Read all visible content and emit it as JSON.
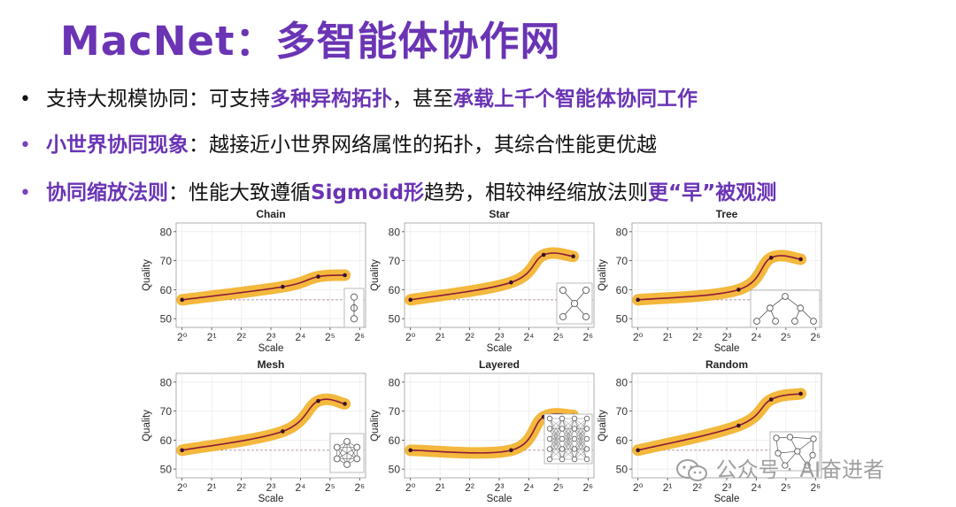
{
  "title": "MacNet：多智能体协作网",
  "bullets": [
    {
      "parts": [
        {
          "text": "支持大规模协同：可支持",
          "hl": false
        },
        {
          "text": "多种异构拓扑",
          "hl": true
        },
        {
          "text": "，甚至",
          "hl": false
        },
        {
          "text": "承载上千个智能体协同工作",
          "hl": true
        }
      ]
    },
    {
      "parts": [
        {
          "text": "小世界协同现象",
          "hl": true
        },
        {
          "text": "：越接近小世界网络属性的拓扑，其综合性能更优越",
          "hl": false
        }
      ]
    },
    {
      "parts": [
        {
          "text": "协同缩放法则",
          "hl": true
        },
        {
          "text": "：性能大致遵循",
          "hl": false
        },
        {
          "text": "Sigmoid形",
          "hl": true
        },
        {
          "text": "趋势，相较神经缩放法则",
          "hl": false
        },
        {
          "text": "更“早”被观测",
          "hl": true
        }
      ]
    }
  ],
  "chart_data": [
    {
      "type": "line",
      "title": "Chain",
      "xlabel": "Scale",
      "ylabel": "Quality",
      "x": [
        0,
        3.4,
        4.6,
        5.5
      ],
      "values": [
        56.5,
        61,
        64.5,
        65
      ],
      "xticks": [
        "2⁰",
        "2¹",
        "2²",
        "2³",
        "2⁴",
        "2⁵",
        "2⁶"
      ],
      "yticks": [
        50,
        60,
        70,
        80
      ],
      "ylim": [
        47,
        83
      ],
      "xlim": [
        -0.2,
        6.2
      ]
    },
    {
      "type": "line",
      "title": "Star",
      "xlabel": "Scale",
      "ylabel": "Quality",
      "x": [
        0,
        3.4,
        4.5,
        5.5
      ],
      "values": [
        56.5,
        62.5,
        72,
        71.5
      ],
      "xticks": [
        "2⁰",
        "2¹",
        "2²",
        "2³",
        "2⁴",
        "2⁵",
        "2⁶"
      ],
      "yticks": [
        50,
        60,
        70,
        80
      ],
      "ylim": [
        47,
        83
      ],
      "xlim": [
        -0.2,
        6.2
      ]
    },
    {
      "type": "line",
      "title": "Tree",
      "xlabel": "Scale",
      "ylabel": "Quality",
      "x": [
        0,
        3.4,
        4.5,
        5.5
      ],
      "values": [
        56.5,
        60,
        71,
        70.5
      ],
      "xticks": [
        "2⁰",
        "2¹",
        "2²",
        "2³",
        "2⁴",
        "2⁵",
        "2⁶"
      ],
      "yticks": [
        50,
        60,
        70,
        80
      ],
      "ylim": [
        47,
        83
      ],
      "xlim": [
        -0.2,
        6.2
      ]
    },
    {
      "type": "line",
      "title": "Mesh",
      "xlabel": "Scale",
      "ylabel": "Quality",
      "x": [
        0,
        3.4,
        4.6,
        5.5
      ],
      "values": [
        56.5,
        63,
        73.5,
        72.5
      ],
      "xticks": [
        "2⁰",
        "2¹",
        "2²",
        "2³",
        "2⁴",
        "2⁵",
        "2⁶"
      ],
      "yticks": [
        50,
        60,
        70,
        80
      ],
      "ylim": [
        47,
        83
      ],
      "xlim": [
        -0.2,
        6.2
      ]
    },
    {
      "type": "line",
      "title": "Layered",
      "xlabel": "Scale",
      "ylabel": "Quality",
      "x": [
        0,
        3.4,
        4.5,
        5.5
      ],
      "values": [
        56.5,
        56.5,
        68,
        68.5
      ],
      "xticks": [
        "2⁰",
        "2¹",
        "2²",
        "2³",
        "2⁴",
        "2⁵",
        "2⁶"
      ],
      "yticks": [
        50,
        60,
        70,
        80
      ],
      "ylim": [
        47,
        83
      ],
      "xlim": [
        -0.2,
        6.2
      ]
    },
    {
      "type": "line",
      "title": "Random",
      "xlabel": "Scale",
      "ylabel": "Quality",
      "x": [
        0,
        3.4,
        4.5,
        5.5
      ],
      "values": [
        56.5,
        65,
        74,
        76
      ],
      "xticks": [
        "2⁰",
        "2¹",
        "2²",
        "2³",
        "2⁴",
        "2⁵",
        "2⁶"
      ],
      "yticks": [
        50,
        60,
        70,
        80
      ],
      "ylim": [
        47,
        83
      ],
      "xlim": [
        -0.2,
        6.2
      ]
    }
  ],
  "colors": {
    "accent": "#6a34b4",
    "band": "#f2b431",
    "line": "#8b1a3a",
    "point": "#3a1030"
  },
  "watermark": "公众号 · AI奋进者"
}
